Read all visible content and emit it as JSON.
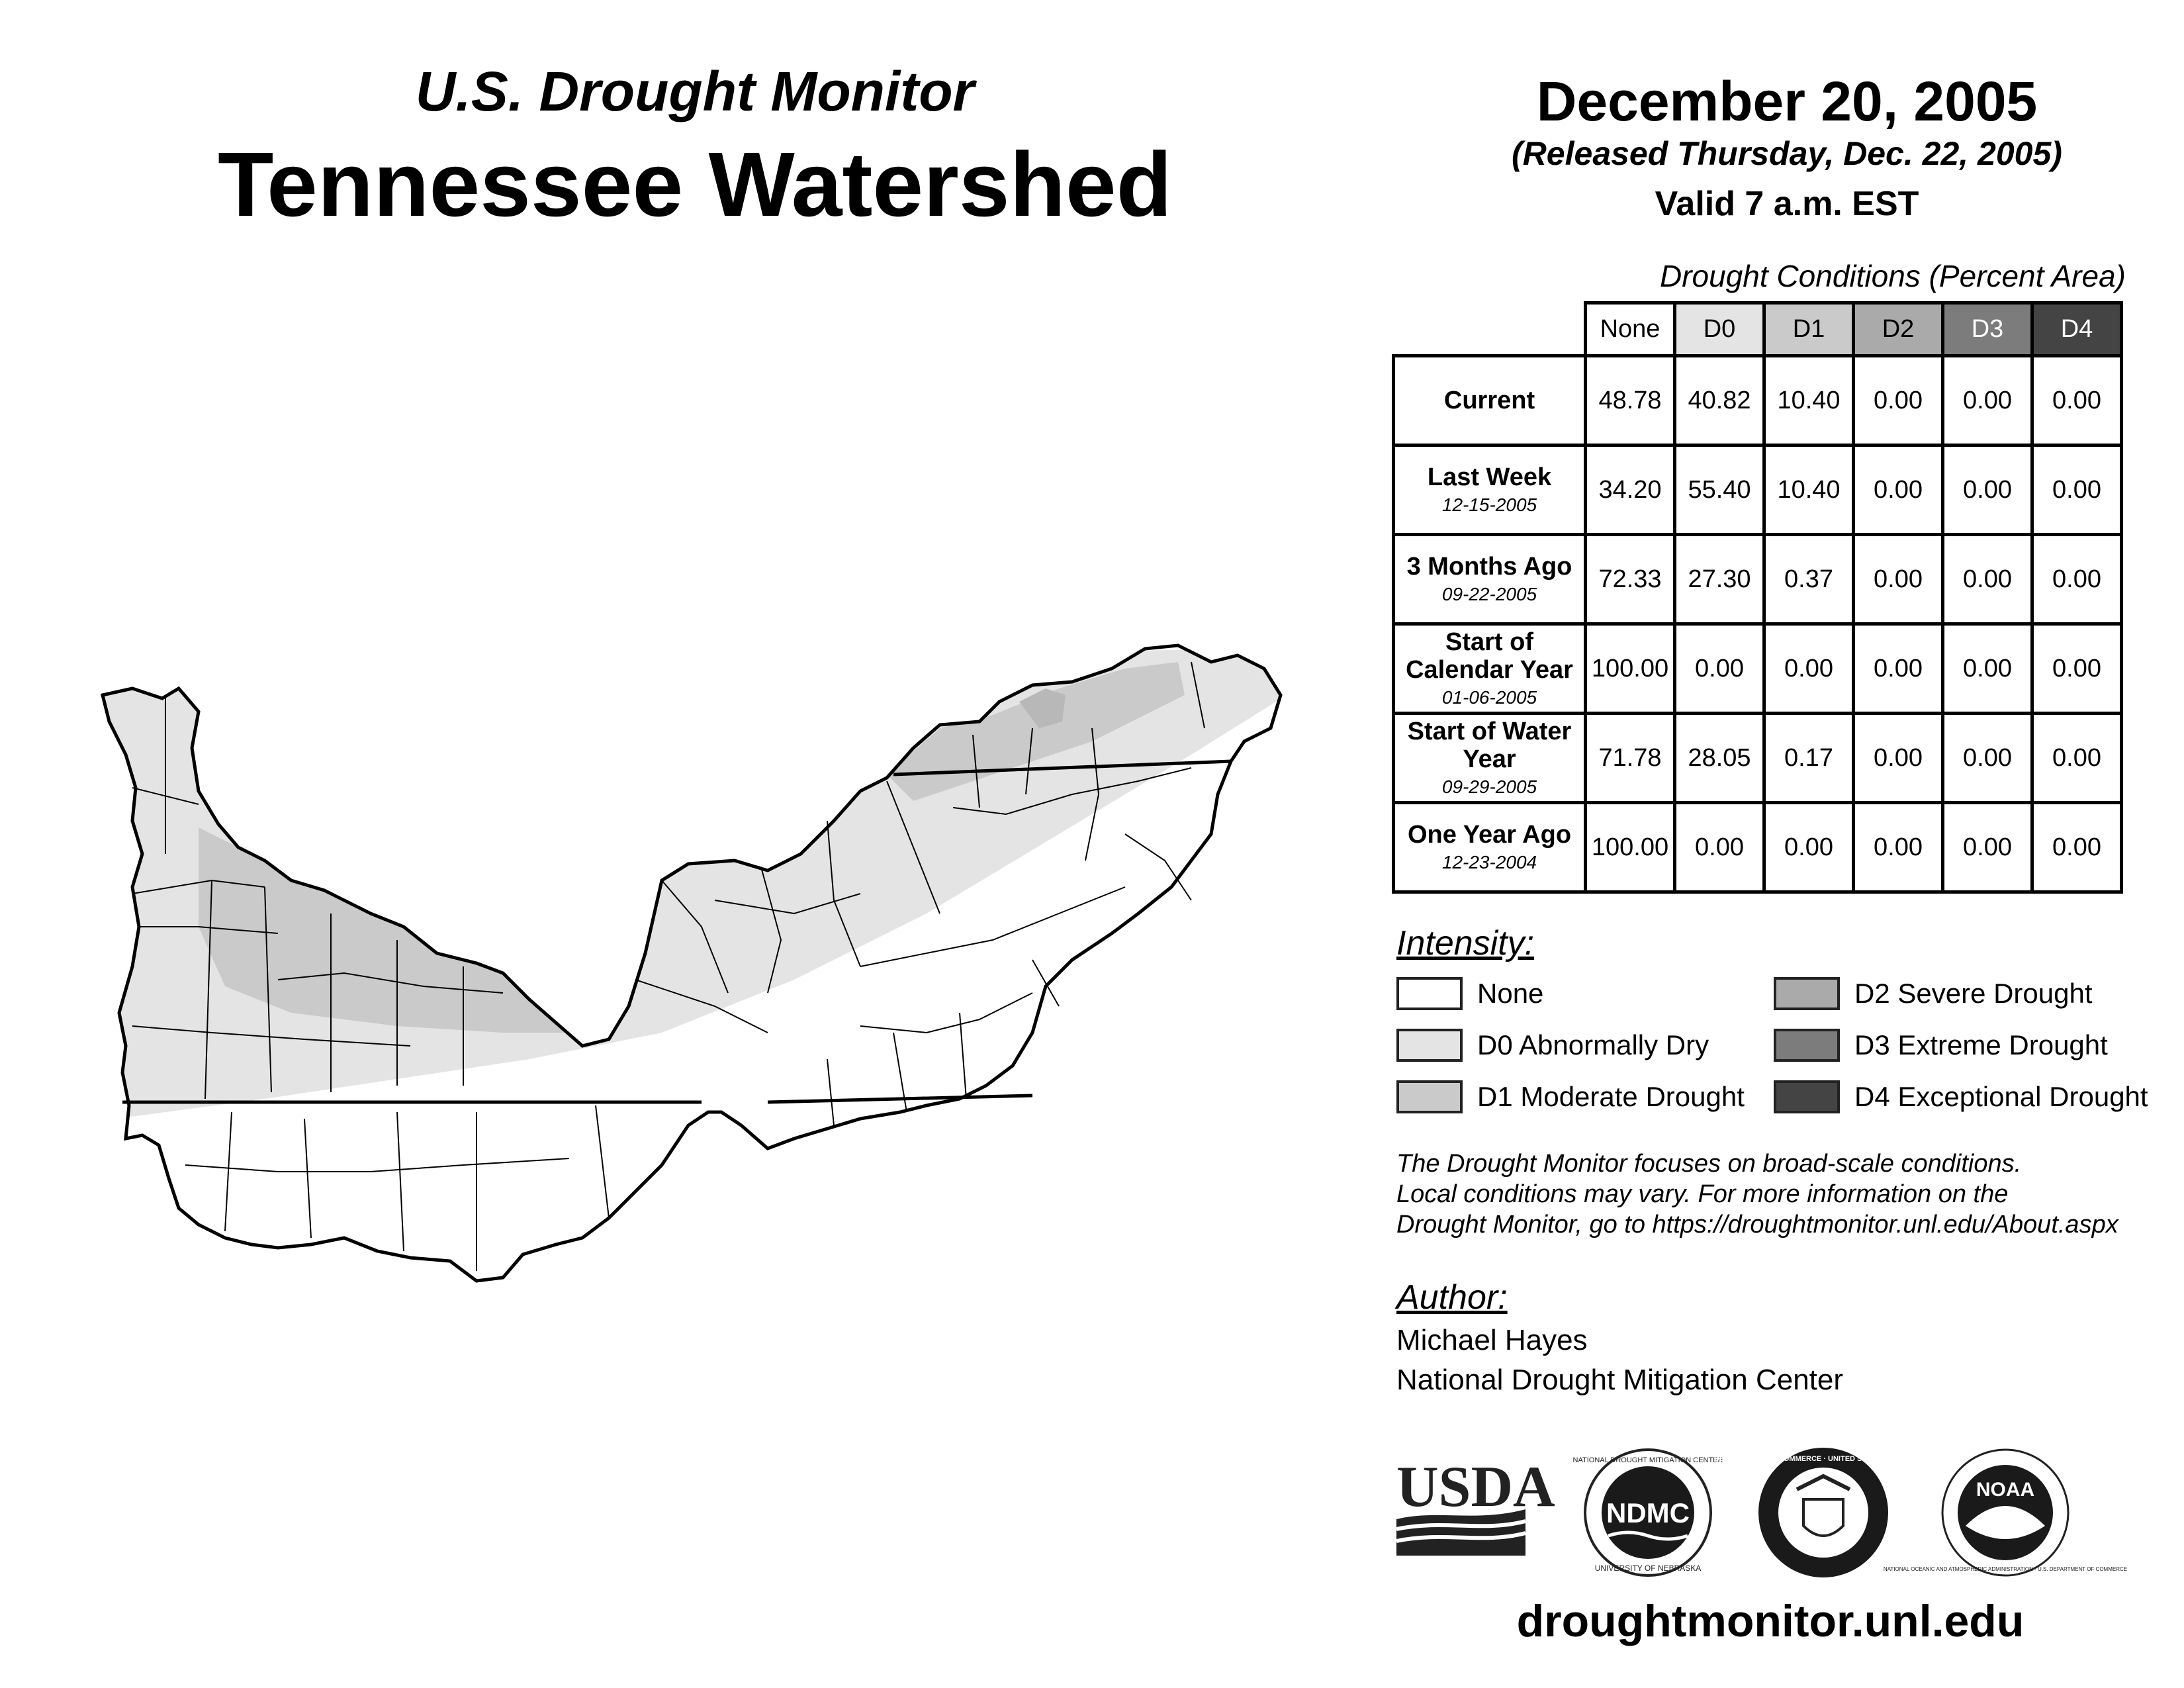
{
  "header": {
    "product": "U.S. Drought Monitor",
    "region": "Tennessee Watershed",
    "date": "December 20, 2005",
    "released": "(Released Thursday, Dec. 22, 2005)",
    "valid": "Valid 7 a.m. EST"
  },
  "table": {
    "title": "Drought Conditions (Percent Area)",
    "columns": [
      "None",
      "D0",
      "D1",
      "D2",
      "D3",
      "D4"
    ],
    "rows": [
      {
        "label": "Current",
        "sublabel": "",
        "values": [
          "48.78",
          "40.82",
          "10.40",
          "0.00",
          "0.00",
          "0.00"
        ]
      },
      {
        "label": "Last Week",
        "sublabel": "12-15-2005",
        "values": [
          "34.20",
          "55.40",
          "10.40",
          "0.00",
          "0.00",
          "0.00"
        ]
      },
      {
        "label": "3 Months Ago",
        "sublabel": "09-22-2005",
        "values": [
          "72.33",
          "27.30",
          "0.37",
          "0.00",
          "0.00",
          "0.00"
        ]
      },
      {
        "label": "Start of Calendar Year",
        "sublabel": "01-06-2005",
        "values": [
          "100.00",
          "0.00",
          "0.00",
          "0.00",
          "0.00",
          "0.00"
        ]
      },
      {
        "label": "Start of Water Year",
        "sublabel": "09-29-2005",
        "values": [
          "71.78",
          "28.05",
          "0.17",
          "0.00",
          "0.00",
          "0.00"
        ]
      },
      {
        "label": "One Year Ago",
        "sublabel": "12-23-2004",
        "values": [
          "100.00",
          "0.00",
          "0.00",
          "0.00",
          "0.00",
          "0.00"
        ]
      }
    ]
  },
  "legend": {
    "heading": "Intensity:",
    "items": [
      {
        "label": "None",
        "color": "#ffffff"
      },
      {
        "label": "D0 Abnormally Dry",
        "color": "#e4e4e4"
      },
      {
        "label": "D1 Moderate Drought",
        "color": "#cacaca"
      },
      {
        "label": "D2 Severe Drought",
        "color": "#aaaaaa"
      },
      {
        "label": "D3 Extreme Drought",
        "color": "#7c7c7c"
      },
      {
        "label": "D4 Exceptional Drought",
        "color": "#444444"
      }
    ]
  },
  "note": {
    "line1": "The Drought Monitor focuses on broad-scale conditions.",
    "line2": "Local conditions may vary. For more information on the",
    "line3": "Drought Monitor, go to https://droughtmonitor.unl.edu/About.aspx"
  },
  "author": {
    "heading": "Author:",
    "name": "Michael Hayes",
    "org": "National Drought Mitigation Center"
  },
  "logos": {
    "usda": "USDA",
    "ndmc": "NDMC",
    "ndmc_ring_top": "NATIONAL DROUGHT MITIGATION CENTER",
    "ndmc_ring_bottom": "UNIVERSITY OF NEBRASKA",
    "doc_ring": "DEPARTMENT OF COMMERCE · UNITED STATES OF AMERICA",
    "noaa": "NOAA",
    "noaa_ring": "NATIONAL OCEANIC AND ATMOSPHERIC ADMINISTRATION · U.S. DEPARTMENT OF COMMERCE"
  },
  "website": "droughtmonitor.unl.edu",
  "map": {
    "colors": {
      "none": "#ffffff",
      "d0": "#e4e4e4",
      "d1": "#cacaca",
      "d1_dark": "#b8b8b8",
      "outline": "#000000"
    }
  }
}
